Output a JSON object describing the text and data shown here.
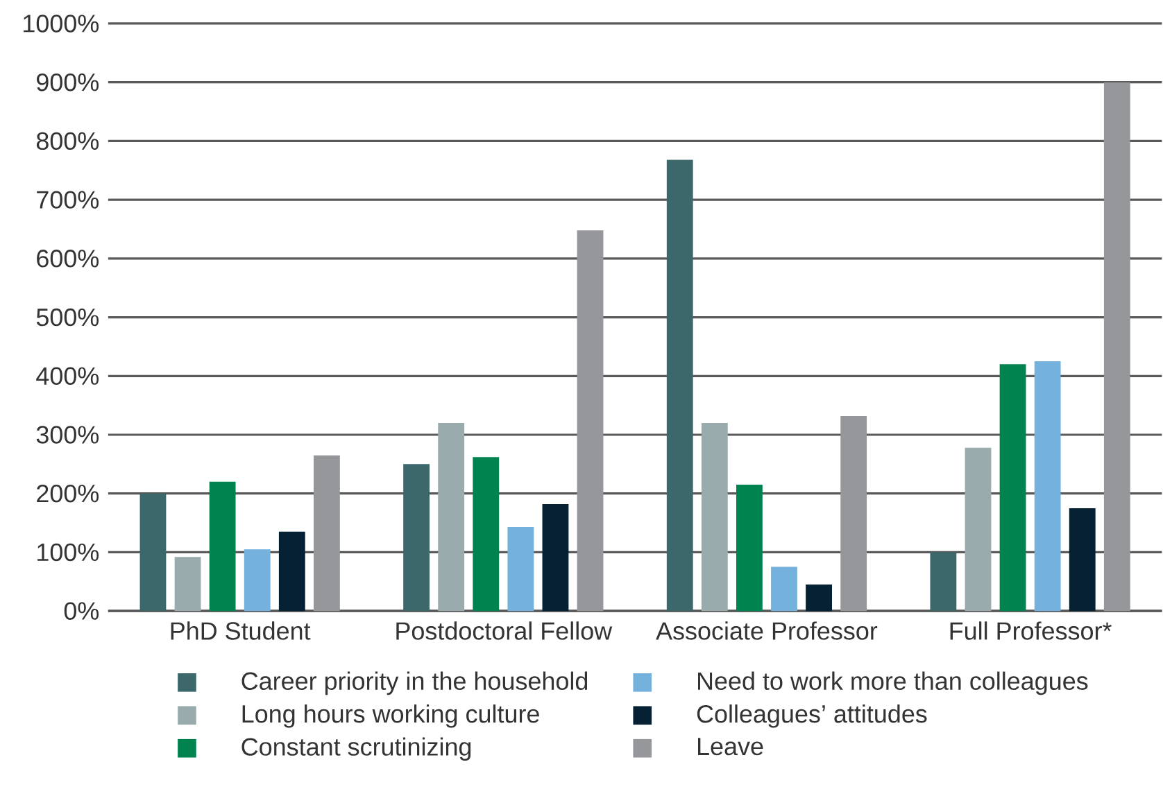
{
  "chart_data": {
    "type": "bar",
    "categories": [
      "PhD Student",
      "Postdoctoral Fellow",
      "Associate Professor",
      "Full Professor*"
    ],
    "series": [
      {
        "name": "Career priority in the household",
        "color": "#3c686b",
        "values": [
          200,
          250,
          768,
          100
        ]
      },
      {
        "name": "Long hours working culture",
        "color": "#9aabae",
        "values": [
          92,
          320,
          320,
          278
        ]
      },
      {
        "name": "Constant scrutinizing",
        "color": "#00834f",
        "values": [
          220,
          262,
          215,
          420
        ]
      },
      {
        "name": "Need to work more than colleagues",
        "color": "#74b1dc",
        "values": [
          105,
          143,
          75,
          425
        ]
      },
      {
        "name": "Colleagues’ attitudes",
        "color": "#052133",
        "values": [
          135,
          182,
          45,
          175
        ]
      },
      {
        "name": "Leave",
        "color": "#96979b",
        "values": [
          265,
          648,
          332,
          900
        ]
      }
    ],
    "ylim": [
      0,
      1000
    ],
    "yticks": [
      {
        "value": 0,
        "label": "0%"
      },
      {
        "value": 100,
        "label": "100%"
      },
      {
        "value": 200,
        "label": "200%"
      },
      {
        "value": 300,
        "label": "300%"
      },
      {
        "value": 400,
        "label": "400%"
      },
      {
        "value": 500,
        "label": "500%"
      },
      {
        "value": 600,
        "label": "600%"
      },
      {
        "value": 700,
        "label": "700%"
      },
      {
        "value": 800,
        "label": "800%"
      },
      {
        "value": 900,
        "label": "900%"
      },
      {
        "value": 1000,
        "label": "1000%"
      }
    ],
    "grid": "y",
    "legend": "bottom"
  }
}
